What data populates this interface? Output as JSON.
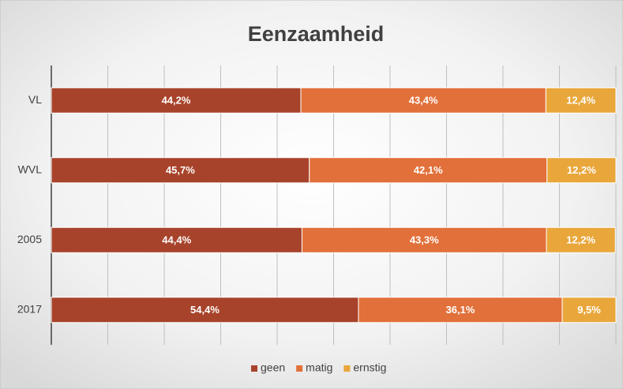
{
  "chart_data": {
    "type": "stacked_barh",
    "title": "Eenzaamheid",
    "categories": [
      "VL",
      "WVL",
      "2005",
      "2017"
    ],
    "series": [
      {
        "name": "geen",
        "color": "#a8432b",
        "values": [
          44.2,
          45.7,
          44.4,
          54.4
        ],
        "value_labels": [
          "44,2%",
          "45,7%",
          "44,4%",
          "54,4%"
        ]
      },
      {
        "name": "matig",
        "color": "#e2703a",
        "values": [
          43.4,
          42.1,
          43.3,
          36.1
        ],
        "value_labels": [
          "43,4%",
          "42,1%",
          "43,3%",
          "36,1%"
        ]
      },
      {
        "name": "ernstig",
        "color": "#e9a73b",
        "values": [
          12.4,
          12.2,
          12.2,
          9.5
        ],
        "value_labels": [
          "12,4%",
          "12,2%",
          "12,2%",
          "9,5%"
        ]
      }
    ],
    "xlim": [
      0,
      100
    ],
    "xticks": [
      0,
      10,
      20,
      30,
      40,
      50,
      60,
      70,
      80,
      90,
      100
    ],
    "grid": true,
    "legend": "bottom"
  }
}
